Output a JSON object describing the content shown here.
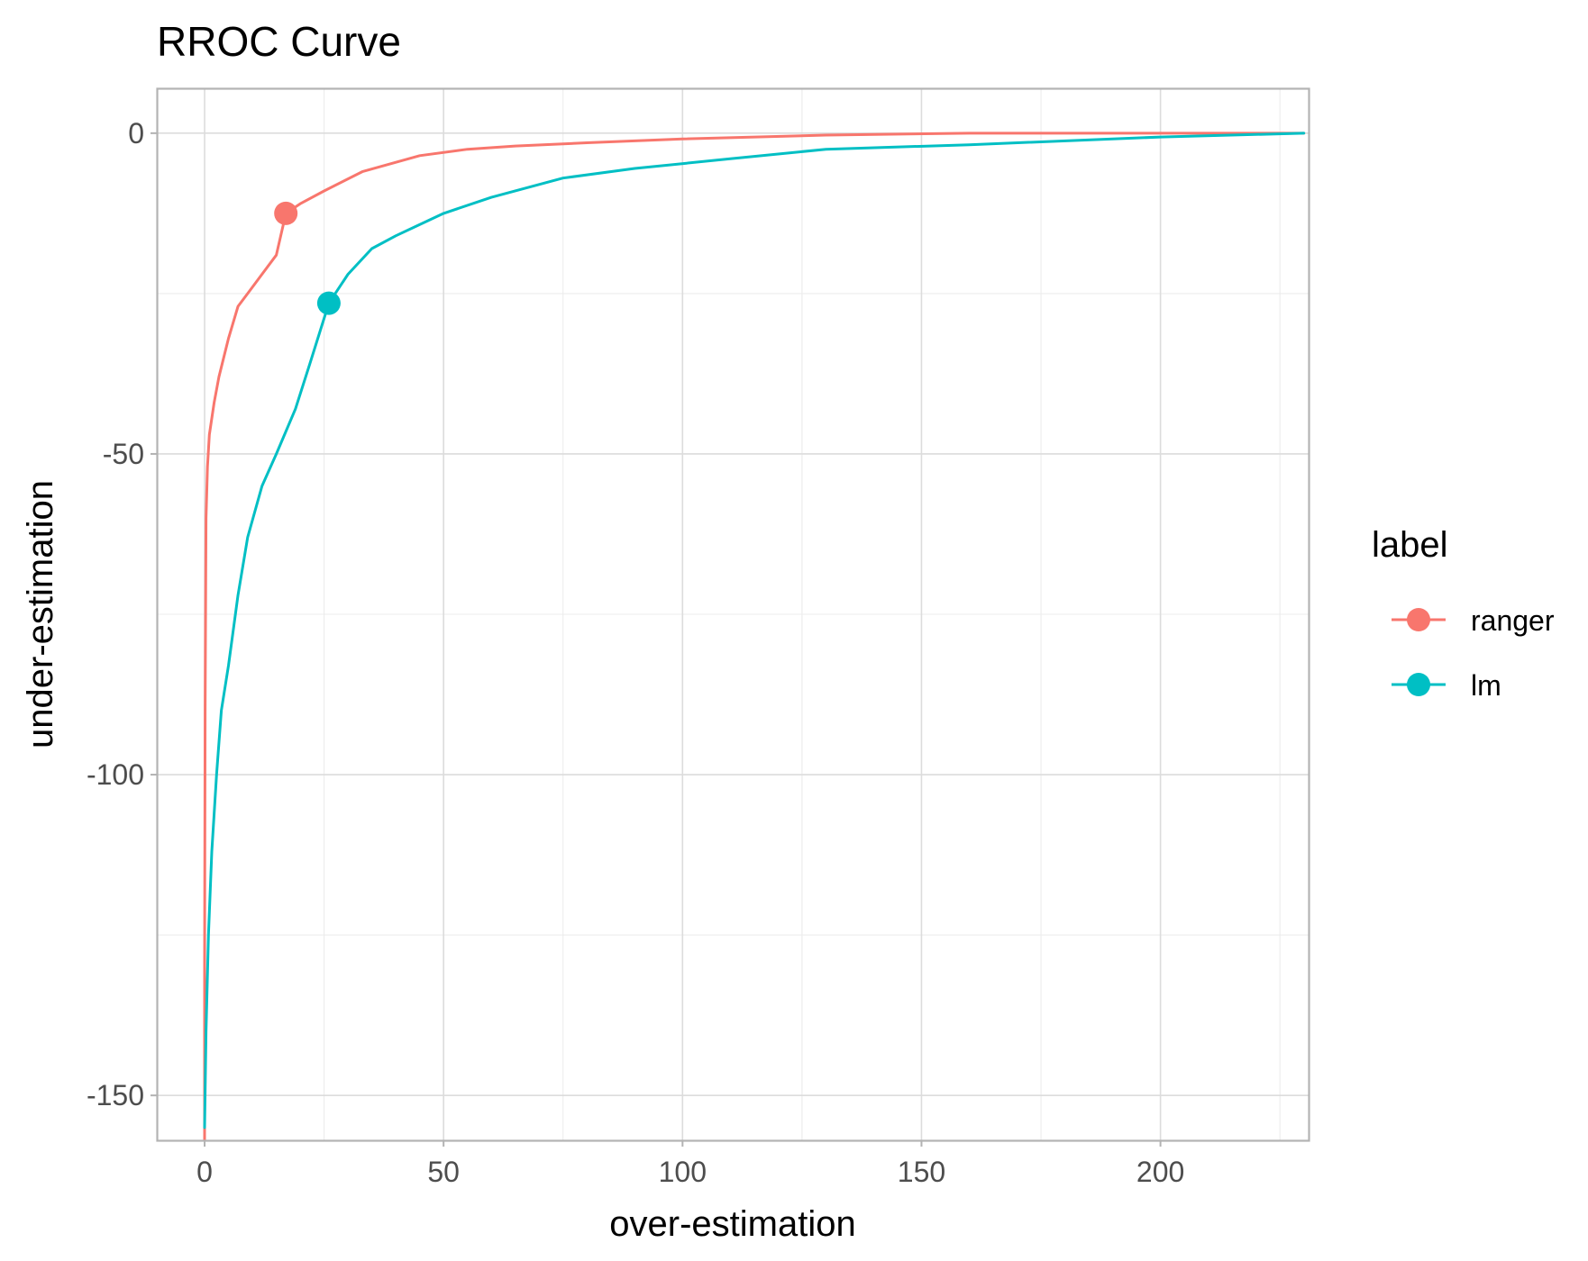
{
  "chart_data": {
    "type": "line",
    "title": "RROC Curve",
    "xlabel": "over-estimation",
    "ylabel": "under-estimation",
    "xlim": [
      -10,
      231
    ],
    "ylim": [
      -157,
      7
    ],
    "x_ticks": [
      0,
      50,
      100,
      150,
      200
    ],
    "y_ticks": [
      0,
      -50,
      -100,
      -150
    ],
    "x_tick_labels": [
      "0",
      "50",
      "100",
      "150",
      "200"
    ],
    "y_tick_labels": [
      "0",
      "-50",
      "-100",
      "-150"
    ],
    "grid": true,
    "legend": {
      "title": "label",
      "position": "right"
    },
    "series": [
      {
        "name": "ranger",
        "color": "#F8766D",
        "x": [
          0,
          0,
          0.1,
          0.3,
          0.6,
          1,
          2,
          3,
          4,
          5,
          7,
          9,
          12,
          15,
          17,
          20,
          25,
          33,
          45,
          55,
          65,
          80,
          100,
          130,
          160,
          200,
          230
        ],
        "y": [
          -157,
          -130,
          -90,
          -60,
          -52,
          -47,
          -42,
          -38,
          -35,
          -32,
          -27,
          -25,
          -22,
          -19,
          -12.5,
          -11,
          -9,
          -6,
          -3.5,
          -2.5,
          -2,
          -1.5,
          -0.9,
          -0.3,
          0,
          0,
          0
        ],
        "marker": {
          "x": 17,
          "y": -12.5
        }
      },
      {
        "name": "lm",
        "color": "#00BFC4",
        "x": [
          0,
          0.3,
          0.8,
          1.5,
          2.5,
          3.5,
          5,
          7,
          9,
          12,
          15,
          19,
          22,
          26,
          30,
          35,
          40,
          50,
          60,
          75,
          90,
          110,
          130,
          160,
          200,
          230
        ],
        "y": [
          -155,
          -140,
          -125,
          -112,
          -100,
          -90,
          -83,
          -72,
          -63,
          -55,
          -50,
          -43,
          -36,
          -26.5,
          -22,
          -18,
          -16,
          -12.5,
          -10,
          -7,
          -5.5,
          -4,
          -2.5,
          -1.8,
          -0.6,
          0
        ],
        "marker": {
          "x": 26,
          "y": -26.5
        }
      }
    ]
  }
}
